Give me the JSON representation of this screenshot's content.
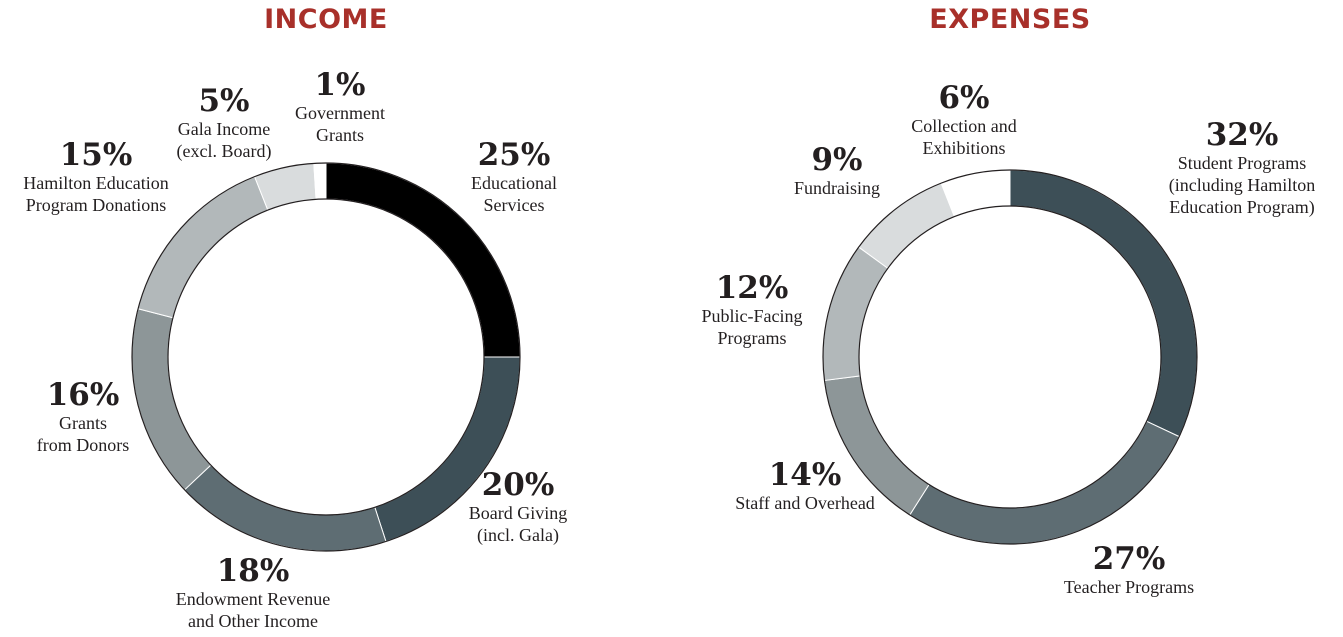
{
  "chart_data": [
    {
      "type": "pie",
      "title": "INCOME",
      "title_color": "#a8302a",
      "slices": [
        {
          "value": 25,
          "pct_label": "25%",
          "label": "Educational Services",
          "label_lines": [
            "Educational",
            "Services"
          ],
          "color": "#000000"
        },
        {
          "value": 20,
          "pct_label": "20%",
          "label": "Board Giving (incl. Gala)",
          "label_lines": [
            "Board Giving",
            "(incl. Gala)"
          ],
          "color": "#3d4f57"
        },
        {
          "value": 18,
          "pct_label": "18%",
          "label": "Endowment Revenue and Other Income",
          "label_lines": [
            "Endowment Revenue",
            "and Other Income"
          ],
          "color": "#5e6d73"
        },
        {
          "value": 16,
          "pct_label": "16%",
          "label": "Grants from Donors",
          "label_lines": [
            "Grants",
            "from Donors"
          ],
          "color": "#8d9698"
        },
        {
          "value": 15,
          "pct_label": "15%",
          "label": "Hamilton Education Program Donations",
          "label_lines": [
            "Hamilton Education",
            "Program Donations"
          ],
          "color": "#b2b8ba"
        },
        {
          "value": 5,
          "pct_label": "5%",
          "label": "Gala Income (excl. Board)",
          "label_lines": [
            "Gala Income",
            "(excl. Board)"
          ],
          "color": "#d9dcdd"
        },
        {
          "value": 1,
          "pct_label": "1%",
          "label": "Government Grants",
          "label_lines": [
            "Government",
            "Grants"
          ],
          "color": "#ffffff"
        }
      ]
    },
    {
      "type": "pie",
      "title": "EXPENSES",
      "title_color": "#a8302a",
      "slices": [
        {
          "value": 32,
          "pct_label": "32%",
          "label": "Student Programs (including Hamilton Education Program)",
          "label_lines": [
            "Student Programs",
            "(including Hamilton",
            "Education Program)"
          ],
          "color": "#3d4f57"
        },
        {
          "value": 27,
          "pct_label": "27%",
          "label": "Teacher Programs",
          "label_lines": [
            "Teacher Programs"
          ],
          "color": "#5e6d73"
        },
        {
          "value": 14,
          "pct_label": "14%",
          "label": "Staff and Overhead",
          "label_lines": [
            "Staff and Overhead"
          ],
          "color": "#8d9698"
        },
        {
          "value": 12,
          "pct_label": "12%",
          "label": "Public-Facing Programs",
          "label_lines": [
            "Public-Facing",
            "Programs"
          ],
          "color": "#b2b8ba"
        },
        {
          "value": 9,
          "pct_label": "9%",
          "label": "Fundraising",
          "label_lines": [
            "Fundraising"
          ],
          "color": "#d9dcdd"
        },
        {
          "value": 6,
          "pct_label": "6%",
          "label": "Collection and Exhibitions",
          "label_lines": [
            "Collection and",
            "Exhibitions"
          ],
          "color": "#ffffff"
        }
      ]
    }
  ]
}
